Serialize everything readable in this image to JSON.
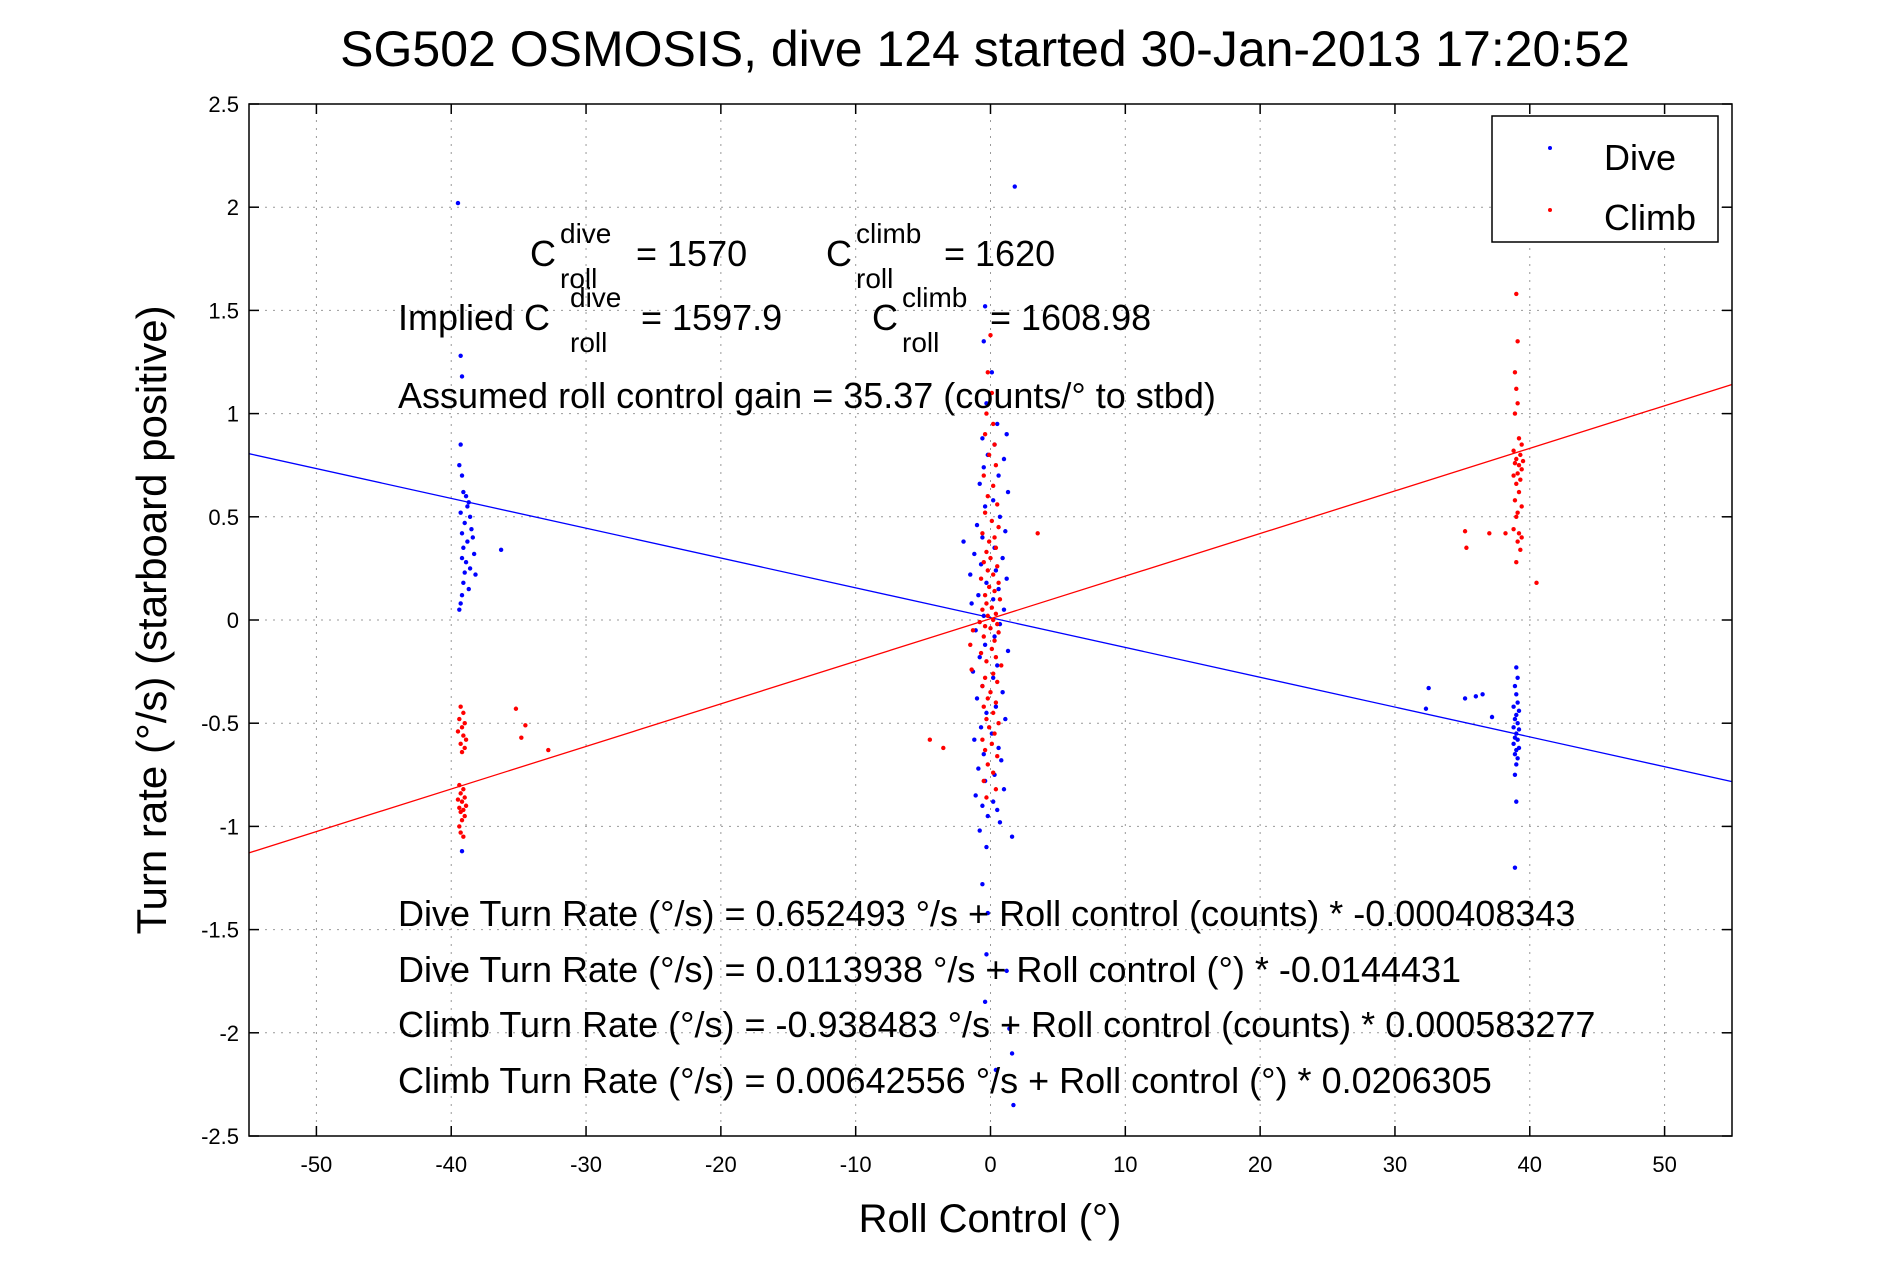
{
  "chart_data": {
    "type": "scatter",
    "title": "SG502 OSMOSIS, dive 124 started 30-Jan-2013 17:20:52",
    "xlabel": "Roll Control (°)",
    "ylabel": "Turn rate (°/s) (starboard positive)",
    "xlim": [
      -55,
      55
    ],
    "ylim": [
      -2.5,
      2.5
    ],
    "xticks": [
      -50,
      -40,
      -30,
      -20,
      -10,
      0,
      10,
      20,
      30,
      40,
      50
    ],
    "yticks": [
      2.5,
      2,
      1.5,
      1,
      0.5,
      0,
      -0.5,
      -1,
      -1.5,
      -2,
      -2.5
    ],
    "xtick_labels": [
      "-50",
      "-40",
      "-30",
      "-20",
      "-10",
      "0",
      "10",
      "20",
      "30",
      "40",
      "50"
    ],
    "ytick_labels": [
      "2.5",
      "2",
      "1.5",
      "1",
      "0.5",
      "0",
      "-0.5",
      "-1",
      "-1.5",
      "-2",
      "-2.5"
    ],
    "grid": true,
    "legend_position": "top-right",
    "series": [
      {
        "name": "Dive",
        "color": "#0000ff",
        "points": [
          [
            -39.5,
            2.02
          ],
          [
            -39.3,
            1.28
          ],
          [
            -39.2,
            1.18
          ],
          [
            -39.3,
            0.85
          ],
          [
            -39.4,
            0.75
          ],
          [
            -39.2,
            0.7
          ],
          [
            -39.1,
            0.62
          ],
          [
            -38.9,
            0.6
          ],
          [
            -38.7,
            0.57
          ],
          [
            -38.8,
            0.55
          ],
          [
            -39.3,
            0.52
          ],
          [
            -38.6,
            0.5
          ],
          [
            -39.0,
            0.47
          ],
          [
            -38.5,
            0.44
          ],
          [
            -39.2,
            0.42
          ],
          [
            -38.4,
            0.4
          ],
          [
            -38.8,
            0.38
          ],
          [
            -39.1,
            0.35
          ],
          [
            -38.3,
            0.32
          ],
          [
            -39.2,
            0.3
          ],
          [
            -38.9,
            0.28
          ],
          [
            -38.6,
            0.25
          ],
          [
            -39.0,
            0.23
          ],
          [
            -38.2,
            0.22
          ],
          [
            -39.1,
            0.18
          ],
          [
            -38.7,
            0.15
          ],
          [
            -39.2,
            0.12
          ],
          [
            -39.3,
            0.08
          ],
          [
            -39.4,
            0.05
          ],
          [
            -36.3,
            0.34
          ],
          [
            -39.2,
            -1.12
          ],
          [
            1.8,
            2.1
          ],
          [
            -0.4,
            1.52
          ],
          [
            -0.5,
            1.35
          ],
          [
            0.1,
            1.2
          ],
          [
            -0.3,
            1.05
          ],
          [
            0.5,
            0.95
          ],
          [
            1.2,
            0.9
          ],
          [
            -0.6,
            0.88
          ],
          [
            0.3,
            0.85
          ],
          [
            -0.2,
            0.8
          ],
          [
            1.0,
            0.78
          ],
          [
            -0.5,
            0.74
          ],
          [
            0.6,
            0.7
          ],
          [
            -0.8,
            0.66
          ],
          [
            1.3,
            0.62
          ],
          [
            0.2,
            0.58
          ],
          [
            -0.4,
            0.55
          ],
          [
            0.7,
            0.5
          ],
          [
            -1.0,
            0.46
          ],
          [
            1.1,
            0.43
          ],
          [
            -0.6,
            0.4
          ],
          [
            -2.0,
            0.38
          ],
          [
            0.3,
            0.35
          ],
          [
            -1.2,
            0.32
          ],
          [
            0.9,
            0.3
          ],
          [
            -0.7,
            0.27
          ],
          [
            0.4,
            0.24
          ],
          [
            -1.5,
            0.22
          ],
          [
            1.2,
            0.2
          ],
          [
            -0.3,
            0.18
          ],
          [
            0.6,
            0.15
          ],
          [
            -0.9,
            0.12
          ],
          [
            0.2,
            0.1
          ],
          [
            -1.4,
            0.08
          ],
          [
            1.0,
            0.05
          ],
          [
            -0.5,
            0.02
          ],
          [
            0.7,
            -0.02
          ],
          [
            -1.1,
            -0.05
          ],
          [
            0.3,
            -0.08
          ],
          [
            -0.4,
            -0.12
          ],
          [
            1.3,
            -0.15
          ],
          [
            -0.8,
            -0.18
          ],
          [
            0.5,
            -0.22
          ],
          [
            -1.3,
            -0.25
          ],
          [
            0.2,
            -0.28
          ],
          [
            -0.6,
            -0.32
          ],
          [
            0.9,
            -0.35
          ],
          [
            -1.0,
            -0.38
          ],
          [
            0.4,
            -0.42
          ],
          [
            -0.3,
            -0.45
          ],
          [
            1.1,
            -0.48
          ],
          [
            -0.7,
            -0.52
          ],
          [
            0.1,
            -0.55
          ],
          [
            -1.2,
            -0.58
          ],
          [
            0.6,
            -0.62
          ],
          [
            -0.5,
            -0.65
          ],
          [
            0.8,
            -0.68
          ],
          [
            -0.9,
            -0.72
          ],
          [
            0.3,
            -0.75
          ],
          [
            -0.4,
            -0.78
          ],
          [
            1.0,
            -0.82
          ],
          [
            -1.1,
            -0.85
          ],
          [
            0.2,
            -0.88
          ],
          [
            -0.6,
            -0.9
          ],
          [
            0.5,
            -0.92
          ],
          [
            -0.2,
            -0.95
          ],
          [
            0.7,
            -0.98
          ],
          [
            -0.8,
            -1.02
          ],
          [
            1.6,
            -1.05
          ],
          [
            -0.3,
            -1.1
          ],
          [
            -0.6,
            -1.28
          ],
          [
            -0.2,
            -1.42
          ],
          [
            -0.3,
            -1.62
          ],
          [
            1.2,
            -1.7
          ],
          [
            -0.4,
            -1.85
          ],
          [
            1.4,
            -1.98
          ],
          [
            1.6,
            -2.1
          ],
          [
            0.4,
            -2.18
          ],
          [
            1.7,
            -2.35
          ],
          [
            32.5,
            -0.33
          ],
          [
            32.3,
            -0.43
          ],
          [
            35.2,
            -0.38
          ],
          [
            36.0,
            -0.37
          ],
          [
            36.5,
            -0.36
          ],
          [
            37.2,
            -0.47
          ],
          [
            39.0,
            -0.23
          ],
          [
            39.1,
            -0.28
          ],
          [
            38.9,
            -0.32
          ],
          [
            39.0,
            -0.36
          ],
          [
            39.1,
            -0.4
          ],
          [
            38.8,
            -0.42
          ],
          [
            39.2,
            -0.44
          ],
          [
            39.0,
            -0.46
          ],
          [
            38.9,
            -0.48
          ],
          [
            39.1,
            -0.5
          ],
          [
            38.8,
            -0.52
          ],
          [
            39.2,
            -0.53
          ],
          [
            39.0,
            -0.55
          ],
          [
            38.9,
            -0.57
          ],
          [
            39.1,
            -0.58
          ],
          [
            38.8,
            -0.6
          ],
          [
            39.2,
            -0.62
          ],
          [
            39.0,
            -0.63
          ],
          [
            38.9,
            -0.65
          ],
          [
            39.1,
            -0.67
          ],
          [
            39.0,
            -0.7
          ],
          [
            38.9,
            -0.75
          ],
          [
            39.0,
            -0.88
          ],
          [
            38.9,
            -1.2
          ]
        ]
      },
      {
        "name": "Climb",
        "color": "#ff0000",
        "points": [
          [
            -39.3,
            -0.42
          ],
          [
            -39.1,
            -0.45
          ],
          [
            -39.4,
            -0.48
          ],
          [
            -39.0,
            -0.5
          ],
          [
            -39.2,
            -0.52
          ],
          [
            -39.5,
            -0.54
          ],
          [
            -39.1,
            -0.56
          ],
          [
            -38.9,
            -0.58
          ],
          [
            -39.3,
            -0.6
          ],
          [
            -39.0,
            -0.62
          ],
          [
            -39.2,
            -0.64
          ],
          [
            -35.2,
            -0.43
          ],
          [
            -34.5,
            -0.51
          ],
          [
            -34.8,
            -0.57
          ],
          [
            -32.8,
            -0.63
          ],
          [
            -39.4,
            -0.8
          ],
          [
            -39.1,
            -0.82
          ],
          [
            -39.3,
            -0.84
          ],
          [
            -39.0,
            -0.86
          ],
          [
            -39.5,
            -0.87
          ],
          [
            -39.2,
            -0.88
          ],
          [
            -38.9,
            -0.9
          ],
          [
            -39.4,
            -0.91
          ],
          [
            -39.1,
            -0.92
          ],
          [
            -39.3,
            -0.93
          ],
          [
            -39.0,
            -0.95
          ],
          [
            -39.2,
            -0.97
          ],
          [
            -39.4,
            -1.0
          ],
          [
            -39.3,
            -1.03
          ],
          [
            -39.1,
            -1.05
          ],
          [
            0.0,
            1.38
          ],
          [
            -0.2,
            1.2
          ],
          [
            0.1,
            1.1
          ],
          [
            -0.3,
            1.0
          ],
          [
            0.2,
            0.95
          ],
          [
            -0.4,
            0.9
          ],
          [
            0.3,
            0.85
          ],
          [
            -0.1,
            0.8
          ],
          [
            0.4,
            0.75
          ],
          [
            -0.5,
            0.7
          ],
          [
            0.2,
            0.65
          ],
          [
            -0.2,
            0.6
          ],
          [
            0.5,
            0.56
          ],
          [
            -0.4,
            0.52
          ],
          [
            0.1,
            0.48
          ],
          [
            0.6,
            0.45
          ],
          [
            -0.6,
            0.42
          ],
          [
            0.3,
            0.4
          ],
          [
            -0.1,
            0.38
          ],
          [
            0.4,
            0.35
          ],
          [
            -0.3,
            0.33
          ],
          [
            3.5,
            0.42
          ],
          [
            0.0,
            0.3
          ],
          [
            -0.5,
            0.28
          ],
          [
            0.5,
            0.26
          ],
          [
            -0.2,
            0.24
          ],
          [
            0.2,
            0.22
          ],
          [
            -0.7,
            0.2
          ],
          [
            0.6,
            0.18
          ],
          [
            -0.1,
            0.16
          ],
          [
            0.3,
            0.14
          ],
          [
            -0.4,
            0.12
          ],
          [
            0.7,
            0.1
          ],
          [
            -0.3,
            0.08
          ],
          [
            0.1,
            0.06
          ],
          [
            -0.6,
            0.05
          ],
          [
            0.4,
            0.03
          ],
          [
            -0.2,
            0.02
          ],
          [
            0.2,
            0.0
          ],
          [
            -0.8,
            -0.01
          ],
          [
            0.5,
            -0.02
          ],
          [
            -0.4,
            -0.03
          ],
          [
            0.0,
            -0.04
          ],
          [
            -1.3,
            -0.05
          ],
          [
            0.6,
            -0.06
          ],
          [
            -0.5,
            -0.08
          ],
          [
            0.3,
            -0.1
          ],
          [
            -1.5,
            -0.12
          ],
          [
            0.1,
            -0.14
          ],
          [
            -0.7,
            -0.16
          ],
          [
            0.4,
            -0.18
          ],
          [
            -0.3,
            -0.2
          ],
          [
            0.8,
            -0.22
          ],
          [
            -1.4,
            -0.24
          ],
          [
            0.2,
            -0.26
          ],
          [
            -0.4,
            -0.28
          ],
          [
            0.5,
            -0.3
          ],
          [
            -0.6,
            -0.32
          ],
          [
            0.0,
            -0.35
          ],
          [
            -0.2,
            -0.38
          ],
          [
            0.4,
            -0.4
          ],
          [
            -0.5,
            -0.42
          ],
          [
            0.2,
            -0.45
          ],
          [
            -0.3,
            -0.48
          ],
          [
            0.6,
            -0.5
          ],
          [
            -0.1,
            -0.52
          ],
          [
            0.3,
            -0.55
          ],
          [
            -0.6,
            -0.58
          ],
          [
            0.1,
            -0.6
          ],
          [
            -0.4,
            -0.63
          ],
          [
            0.5,
            -0.66
          ],
          [
            -0.2,
            -0.7
          ],
          [
            0.2,
            -0.74
          ],
          [
            -0.5,
            -0.78
          ],
          [
            0.4,
            -0.82
          ],
          [
            -0.3,
            -0.86
          ],
          [
            -4.5,
            -0.58
          ],
          [
            -3.5,
            -0.62
          ],
          [
            35.2,
            0.43
          ],
          [
            35.3,
            0.35
          ],
          [
            37.0,
            0.42
          ],
          [
            38.2,
            0.42
          ],
          [
            40.5,
            0.18
          ],
          [
            39.0,
            1.58
          ],
          [
            39.1,
            1.35
          ],
          [
            38.9,
            1.2
          ],
          [
            39.0,
            1.12
          ],
          [
            39.1,
            1.05
          ],
          [
            38.9,
            1.0
          ],
          [
            39.2,
            0.88
          ],
          [
            39.4,
            0.85
          ],
          [
            38.8,
            0.82
          ],
          [
            39.3,
            0.8
          ],
          [
            39.0,
            0.78
          ],
          [
            39.5,
            0.77
          ],
          [
            38.9,
            0.76
          ],
          [
            39.2,
            0.75
          ],
          [
            39.4,
            0.73
          ],
          [
            39.1,
            0.71
          ],
          [
            38.8,
            0.7
          ],
          [
            39.3,
            0.68
          ],
          [
            39.0,
            0.66
          ],
          [
            39.2,
            0.62
          ],
          [
            38.9,
            0.58
          ],
          [
            39.4,
            0.55
          ],
          [
            39.1,
            0.52
          ],
          [
            39.0,
            0.5
          ],
          [
            38.8,
            0.44
          ],
          [
            39.2,
            0.42
          ],
          [
            39.4,
            0.4
          ],
          [
            39.1,
            0.38
          ],
          [
            39.3,
            0.34
          ],
          [
            39.0,
            0.28
          ]
        ]
      }
    ],
    "fit_lines": [
      {
        "name": "Dive fit",
        "color": "#0000ff",
        "intercept": 0.0113938,
        "slope": -0.0144431
      },
      {
        "name": "Climb fit",
        "color": "#ff0000",
        "intercept": 0.00642556,
        "slope": 0.0206305
      }
    ],
    "legend": [
      {
        "label": "Dive",
        "color": "#0000ff"
      },
      {
        "label": "Climb",
        "color": "#ff0000"
      }
    ],
    "annotations": {
      "c_roll_dive": {
        "base": "C",
        "sup": "dive",
        "sub": "roll",
        "value": "= 1570"
      },
      "c_roll_climb": {
        "base": "C",
        "sup": "climb",
        "sub": "roll",
        "value": "= 1620"
      },
      "implied_prefix": "Implied C",
      "implied_dive": {
        "sup": "dive",
        "sub": "roll",
        "value": "= 1597.9"
      },
      "implied_climb": {
        "base": "C",
        "sup": "climb",
        "sub": "roll",
        "value": "= 1608.98"
      },
      "gain": "Assumed roll control gain = 35.37 (counts/° to stbd)",
      "fit_lines": [
        "Dive Turn Rate (°/s) = 0.652493 °/s + Roll control (counts) * -0.000408343",
        "Dive Turn Rate (°/s) = 0.0113938 °/s + Roll control (°) * -0.0144431",
        "Climb Turn Rate (°/s) = -0.938483 °/s + Roll control (counts) * 0.000583277",
        "Climb Turn Rate (°/s) = 0.00642556 °/s + Roll control (°) * 0.0206305"
      ]
    }
  }
}
